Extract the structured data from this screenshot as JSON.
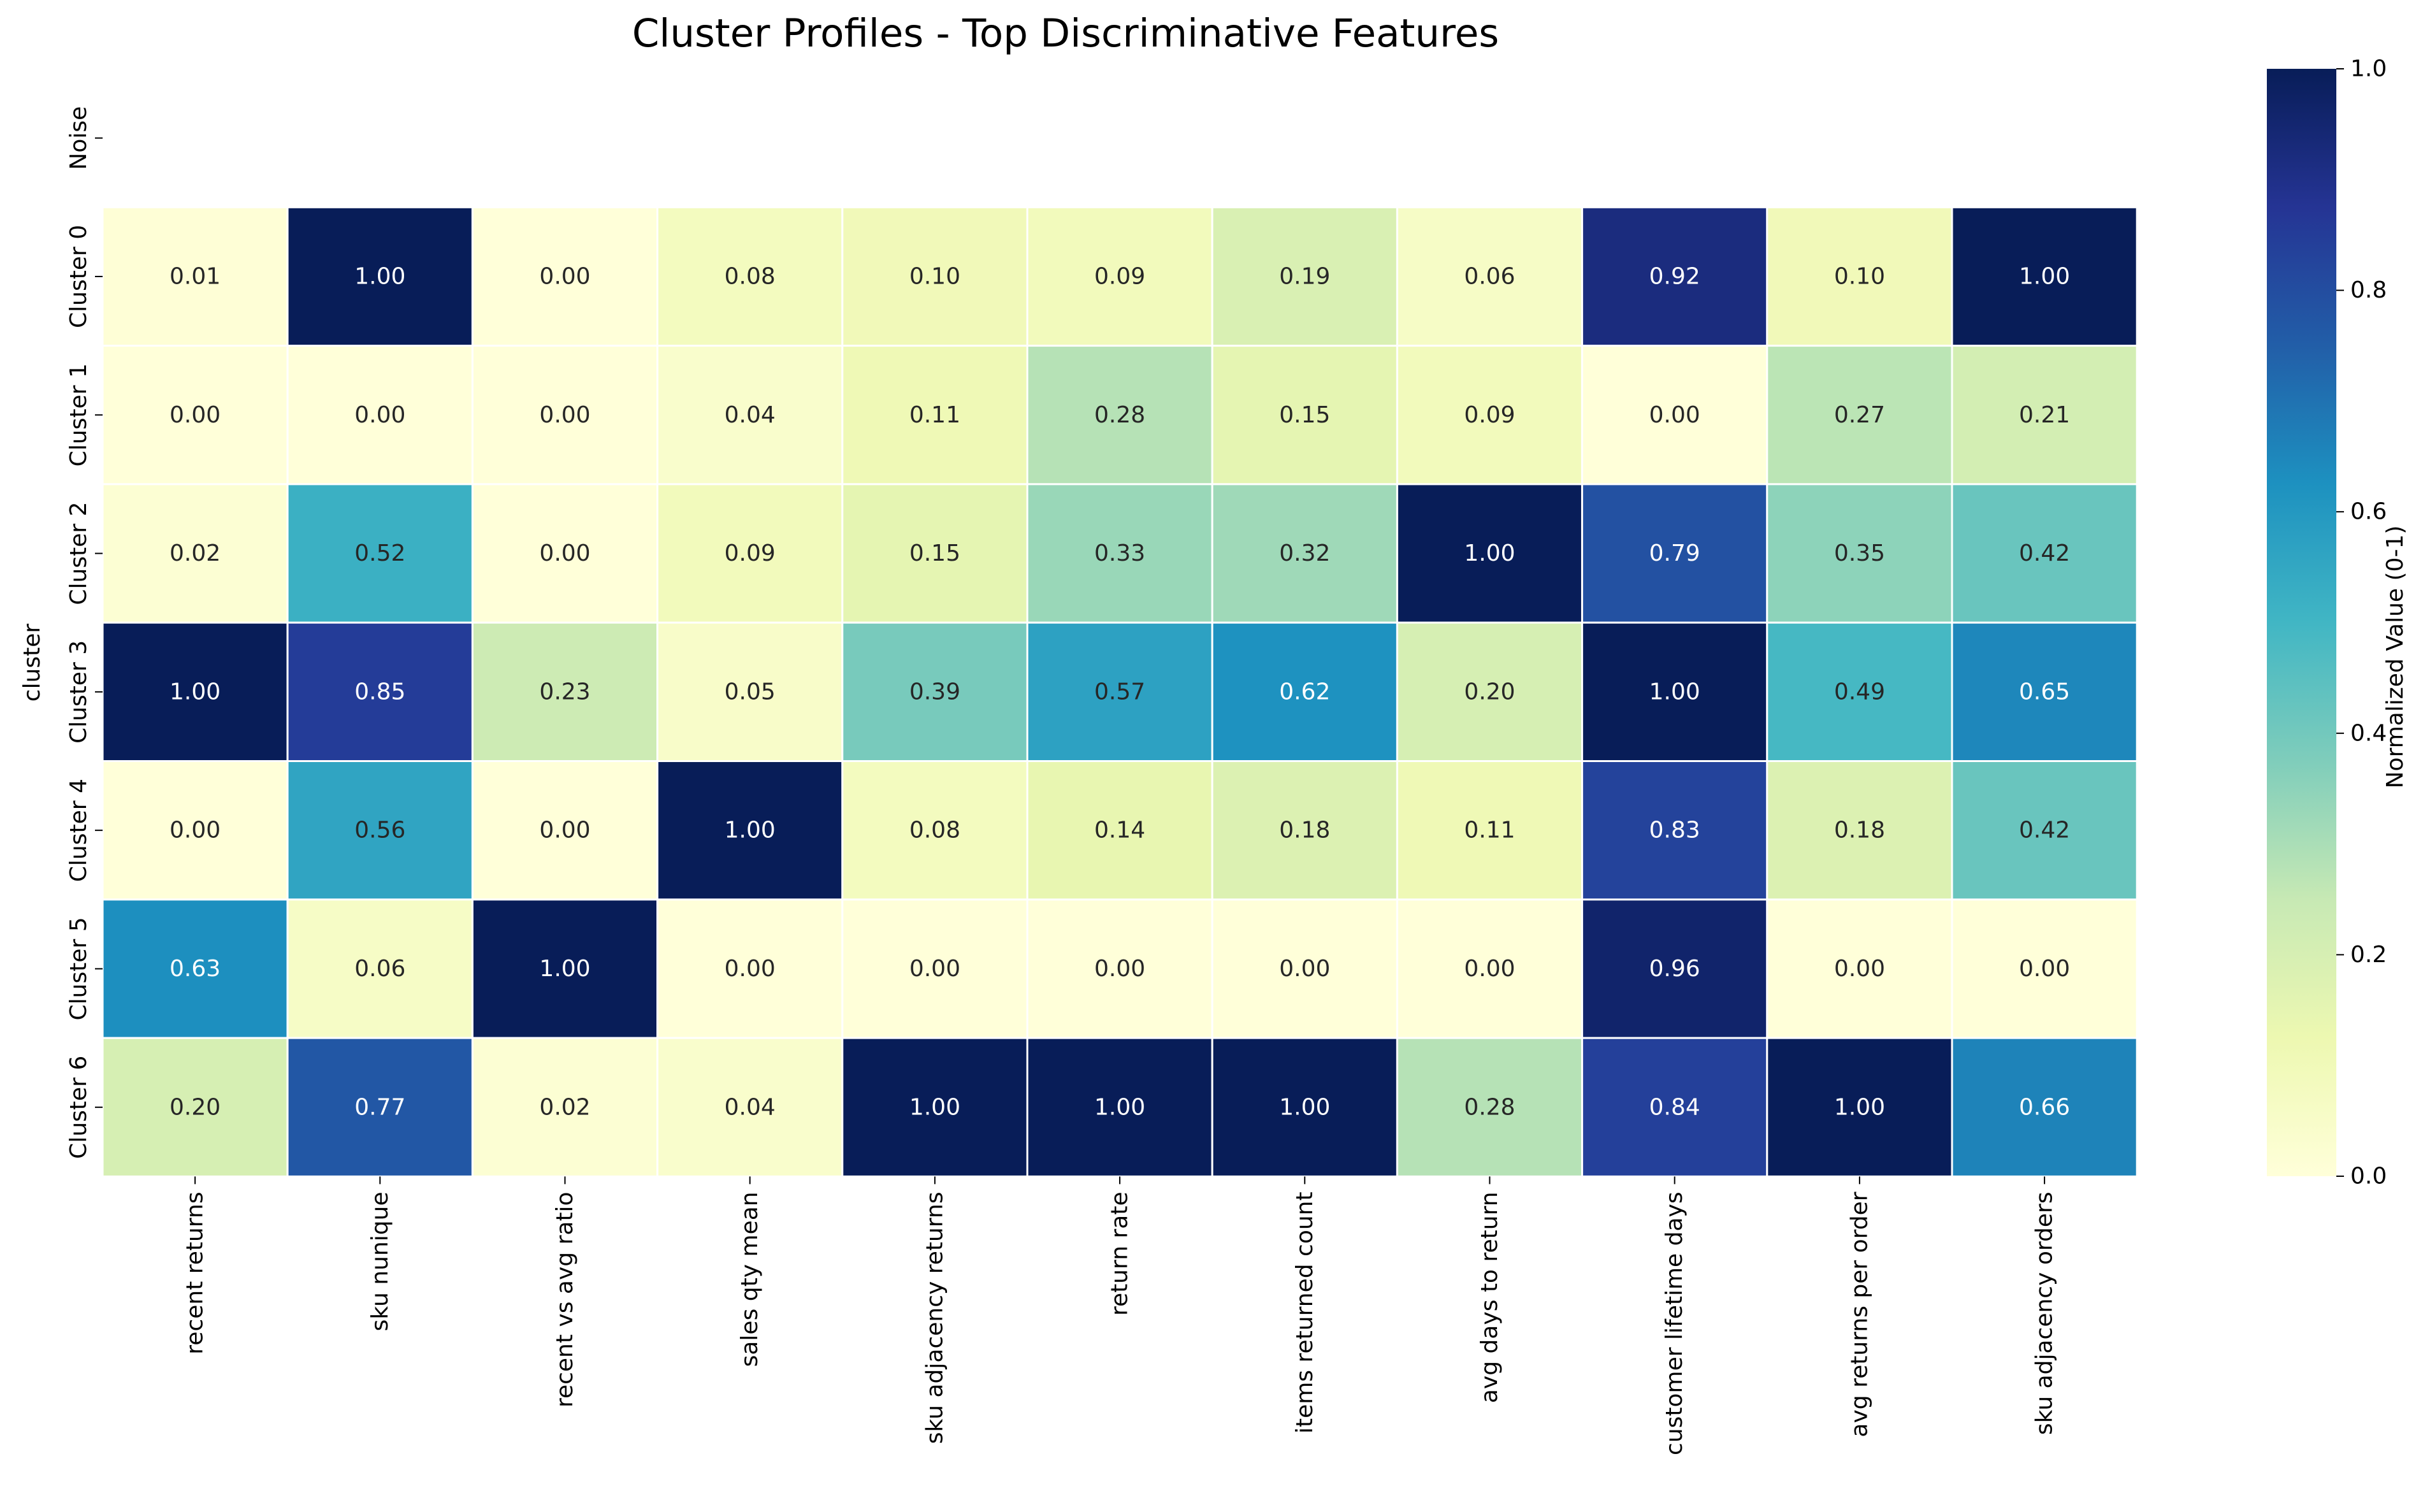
{
  "chart_data": {
    "type": "heatmap",
    "title": "Cluster Profiles - Top Discriminative Features",
    "ylabel": "cluster",
    "xlabel": "",
    "rows": [
      "Noise",
      "Cluster 0",
      "Cluster 1",
      "Cluster 2",
      "Cluster 3",
      "Cluster 4",
      "Cluster 5",
      "Cluster 6"
    ],
    "columns": [
      "recent returns",
      "sku nunique",
      "recent vs avg ratio",
      "sales qty mean",
      "sku adjacency returns",
      "return rate",
      "items returned count",
      "avg days to return",
      "customer lifetime days",
      "avg returns per order",
      "sku adjacency orders"
    ],
    "values": [
      [
        null,
        null,
        null,
        null,
        null,
        null,
        null,
        null,
        null,
        null,
        null
      ],
      [
        0.01,
        1.0,
        0.0,
        0.08,
        0.1,
        0.09,
        0.19,
        0.06,
        0.92,
        0.1,
        1.0
      ],
      [
        0.0,
        0.0,
        0.0,
        0.04,
        0.11,
        0.28,
        0.15,
        0.09,
        0.0,
        0.27,
        0.21
      ],
      [
        0.02,
        0.52,
        0.0,
        0.09,
        0.15,
        0.33,
        0.32,
        1.0,
        0.79,
        0.35,
        0.42
      ],
      [
        1.0,
        0.85,
        0.23,
        0.05,
        0.39,
        0.57,
        0.62,
        0.2,
        1.0,
        0.49,
        0.65
      ],
      [
        0.0,
        0.56,
        0.0,
        1.0,
        0.08,
        0.14,
        0.18,
        0.11,
        0.83,
        0.18,
        0.42
      ],
      [
        0.63,
        0.06,
        1.0,
        0.0,
        0.0,
        0.0,
        0.0,
        0.0,
        0.96,
        0.0,
        0.0
      ],
      [
        0.2,
        0.77,
        0.02,
        0.04,
        1.0,
        1.0,
        1.0,
        0.28,
        0.84,
        1.0,
        0.66
      ]
    ],
    "value_format": "0.00",
    "colorbar": {
      "label": "Normalized Value (0-1)",
      "range": [
        0,
        1
      ],
      "ticks": [
        0.0,
        0.2,
        0.4,
        0.6,
        0.8,
        1.0
      ],
      "colormap": "YlGnBu",
      "colormap_stops": [
        "#ffffd9",
        "#edf8b1",
        "#c7e9b4",
        "#7fcdbb",
        "#41b6c4",
        "#1d91c0",
        "#225ea8",
        "#253494",
        "#081d58"
      ]
    },
    "cell_border_color": "#ffffff",
    "text_dark_color": "#262626",
    "text_light_color": "#ffffff"
  }
}
